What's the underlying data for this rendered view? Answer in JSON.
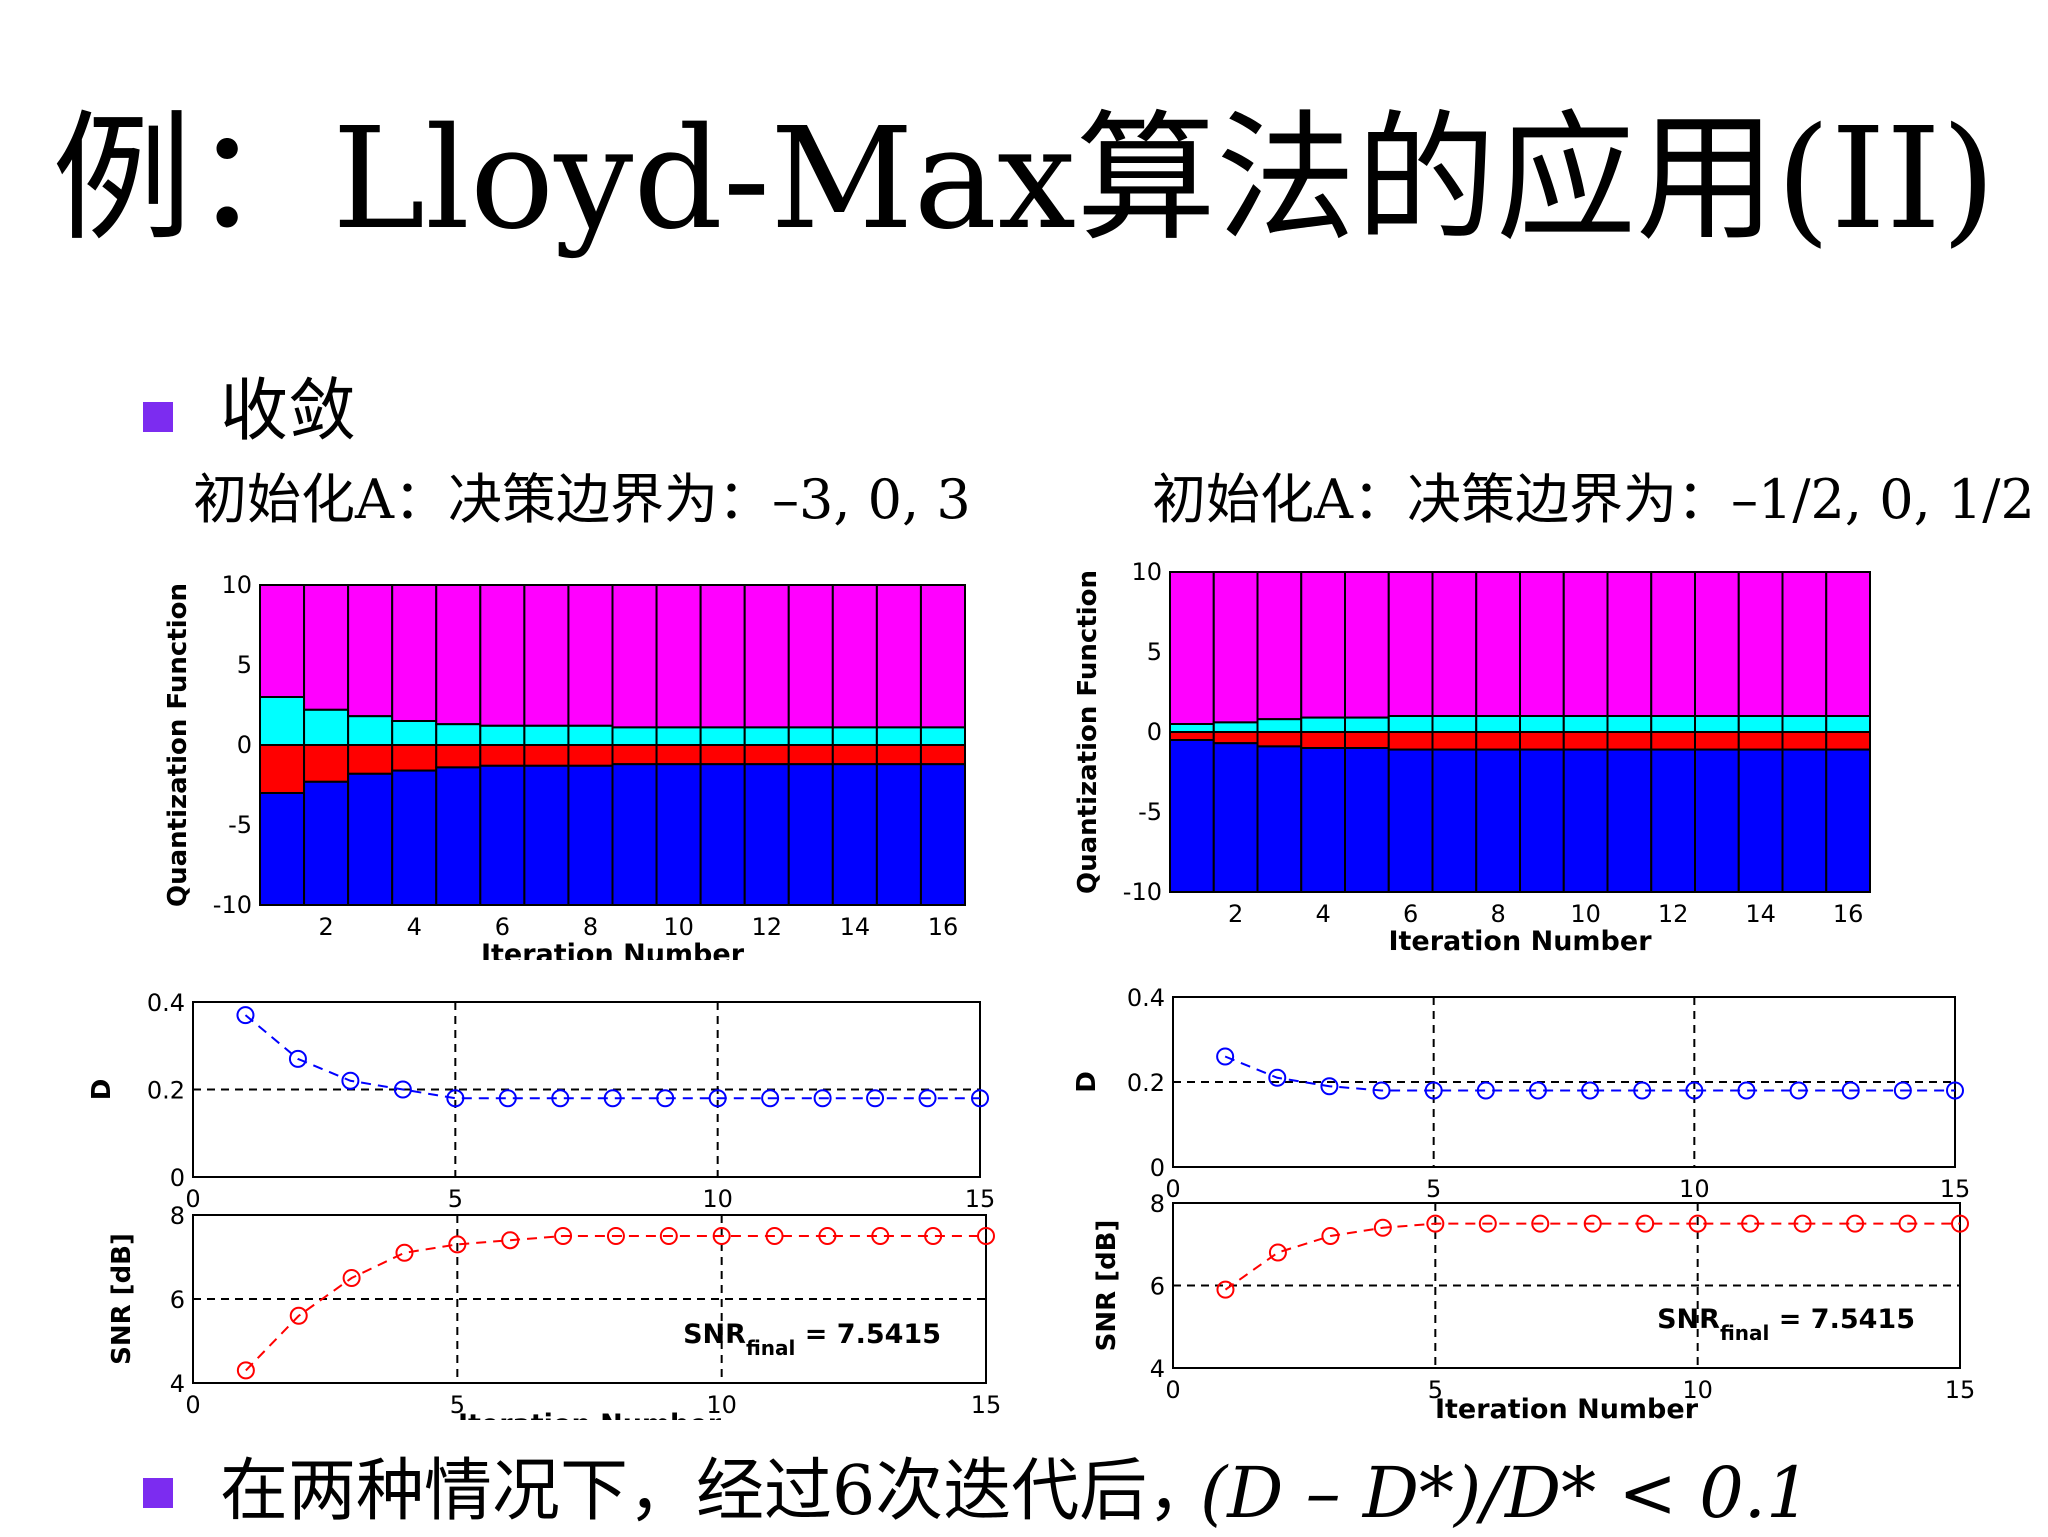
{
  "slide": {
    "title": "例：Lloyd-Max算法的应用(II)",
    "bullet1": "收敛",
    "bullet2": "在两种情况下，经过6次迭代后，",
    "formula": "(D – D*)/D* < 0.1",
    "init_left": "初始化A：决策边界为：–3, 0, 3",
    "init_right": "初始化A：决策边界为：–1/2, 0, 1/2"
  },
  "colors": {
    "bullet": "#7c2cf0",
    "magenta": "#ff00ff",
    "cyan": "#00ffff",
    "red": "#ff0000",
    "blue": "#0000ff",
    "d_series": "#0000ff",
    "snr_series": "#ff0000"
  },
  "chart_data": [
    {
      "type": "bar",
      "panel": "left-quantization",
      "ylabel": "Quantization Function",
      "xlabel": "Iteration Number",
      "xticks": [
        2,
        4,
        6,
        8,
        10,
        12,
        14,
        16
      ],
      "yticks": [
        10,
        5,
        0,
        -5,
        -10
      ],
      "ylim": [
        -10,
        10
      ],
      "x": [
        1,
        2,
        3,
        4,
        5,
        6,
        7,
        8,
        9,
        10,
        11,
        12,
        13,
        14,
        15,
        16
      ],
      "boundaries": [
        [
          -3.0,
          -0.0,
          3.0
        ],
        [
          -2.3,
          -0.0,
          2.2
        ],
        [
          -1.8,
          -0.0,
          1.8
        ],
        [
          -1.6,
          -0.0,
          1.5
        ],
        [
          -1.4,
          -0.0,
          1.3
        ],
        [
          -1.3,
          -0.0,
          1.2
        ],
        [
          -1.3,
          -0.0,
          1.2
        ],
        [
          -1.3,
          -0.0,
          1.2
        ],
        [
          -1.2,
          -0.0,
          1.1
        ],
        [
          -1.2,
          -0.0,
          1.1
        ],
        [
          -1.2,
          -0.0,
          1.1
        ],
        [
          -1.2,
          -0.0,
          1.1
        ],
        [
          -1.2,
          -0.0,
          1.1
        ],
        [
          -1.2,
          -0.0,
          1.1
        ],
        [
          -1.2,
          -0.0,
          1.1
        ],
        [
          -1.2,
          -0.0,
          1.1
        ]
      ]
    },
    {
      "type": "bar",
      "panel": "right-quantization",
      "ylabel": "Quantization Function",
      "xlabel": "Iteration Number",
      "xticks": [
        2,
        4,
        6,
        8,
        10,
        12,
        14,
        16
      ],
      "yticks": [
        10,
        5,
        0,
        -5,
        -10
      ],
      "ylim": [
        -10,
        10
      ],
      "x": [
        1,
        2,
        3,
        4,
        5,
        6,
        7,
        8,
        9,
        10,
        11,
        12,
        13,
        14,
        15,
        16
      ],
      "boundaries": [
        [
          -0.5,
          0.0,
          0.5
        ],
        [
          -0.7,
          0.0,
          0.6
        ],
        [
          -0.9,
          0.0,
          0.8
        ],
        [
          -1.0,
          0.0,
          0.9
        ],
        [
          -1.0,
          0.0,
          0.9
        ],
        [
          -1.1,
          0.0,
          1.0
        ],
        [
          -1.1,
          0.0,
          1.0
        ],
        [
          -1.1,
          0.0,
          1.0
        ],
        [
          -1.1,
          0.0,
          1.0
        ],
        [
          -1.1,
          0.0,
          1.0
        ],
        [
          -1.1,
          0.0,
          1.0
        ],
        [
          -1.1,
          0.0,
          1.0
        ],
        [
          -1.1,
          0.0,
          1.0
        ],
        [
          -1.1,
          0.0,
          1.0
        ],
        [
          -1.1,
          0.0,
          1.0
        ],
        [
          -1.1,
          0.0,
          1.0
        ]
      ]
    },
    {
      "type": "line",
      "panel": "left-distortion",
      "ylabel": "D",
      "xlim": [
        0,
        15
      ],
      "ylim": [
        0,
        0.4
      ],
      "xticks": [
        0,
        5,
        10,
        15
      ],
      "yticks": [
        0,
        0.2,
        0.4
      ],
      "grid": true,
      "x": [
        1,
        2,
        3,
        4,
        5,
        6,
        7,
        8,
        9,
        10,
        11,
        12,
        13,
        14,
        15
      ],
      "y": [
        0.37,
        0.27,
        0.22,
        0.2,
        0.18,
        0.18,
        0.18,
        0.18,
        0.18,
        0.18,
        0.18,
        0.18,
        0.18,
        0.18,
        0.18
      ]
    },
    {
      "type": "line",
      "panel": "left-snr",
      "ylabel": "SNR [dB]",
      "xlabel": "Iteration Number",
      "xlim": [
        0,
        15
      ],
      "ylim": [
        4,
        8
      ],
      "xticks": [
        0,
        5,
        10,
        15
      ],
      "yticks": [
        4,
        6,
        8
      ],
      "grid": true,
      "annotation": {
        "prefix": "SNR",
        "sub": "final",
        "suffix": " = 7.5415"
      },
      "x": [
        1,
        2,
        3,
        4,
        5,
        6,
        7,
        8,
        9,
        10,
        11,
        12,
        13,
        14,
        15
      ],
      "y": [
        4.3,
        5.6,
        6.5,
        7.1,
        7.3,
        7.4,
        7.5,
        7.5,
        7.5,
        7.5,
        7.5,
        7.5,
        7.5,
        7.5,
        7.5
      ]
    },
    {
      "type": "line",
      "panel": "right-distortion",
      "ylabel": "D",
      "xlim": [
        0,
        15
      ],
      "ylim": [
        0,
        0.4
      ],
      "xticks": [
        0,
        5,
        10,
        15
      ],
      "yticks": [
        0,
        0.2,
        0.4
      ],
      "grid": true,
      "x": [
        1,
        2,
        3,
        4,
        5,
        6,
        7,
        8,
        9,
        10,
        11,
        12,
        13,
        14,
        15
      ],
      "y": [
        0.26,
        0.21,
        0.19,
        0.18,
        0.18,
        0.18,
        0.18,
        0.18,
        0.18,
        0.18,
        0.18,
        0.18,
        0.18,
        0.18,
        0.18
      ]
    },
    {
      "type": "line",
      "panel": "right-snr",
      "ylabel": "SNR [dB]",
      "xlabel": "Iteration Number",
      "xlim": [
        0,
        15
      ],
      "ylim": [
        4,
        8
      ],
      "xticks": [
        0,
        5,
        10,
        15
      ],
      "yticks": [
        4,
        6,
        8
      ],
      "grid": true,
      "annotation": {
        "prefix": "SNR",
        "sub": "final",
        "suffix": " = 7.5415"
      },
      "x": [
        1,
        2,
        3,
        4,
        5,
        6,
        7,
        8,
        9,
        10,
        11,
        12,
        13,
        14,
        15
      ],
      "y": [
        5.9,
        6.8,
        7.2,
        7.4,
        7.5,
        7.5,
        7.5,
        7.5,
        7.5,
        7.5,
        7.5,
        7.5,
        7.5,
        7.5,
        7.5
      ]
    }
  ]
}
